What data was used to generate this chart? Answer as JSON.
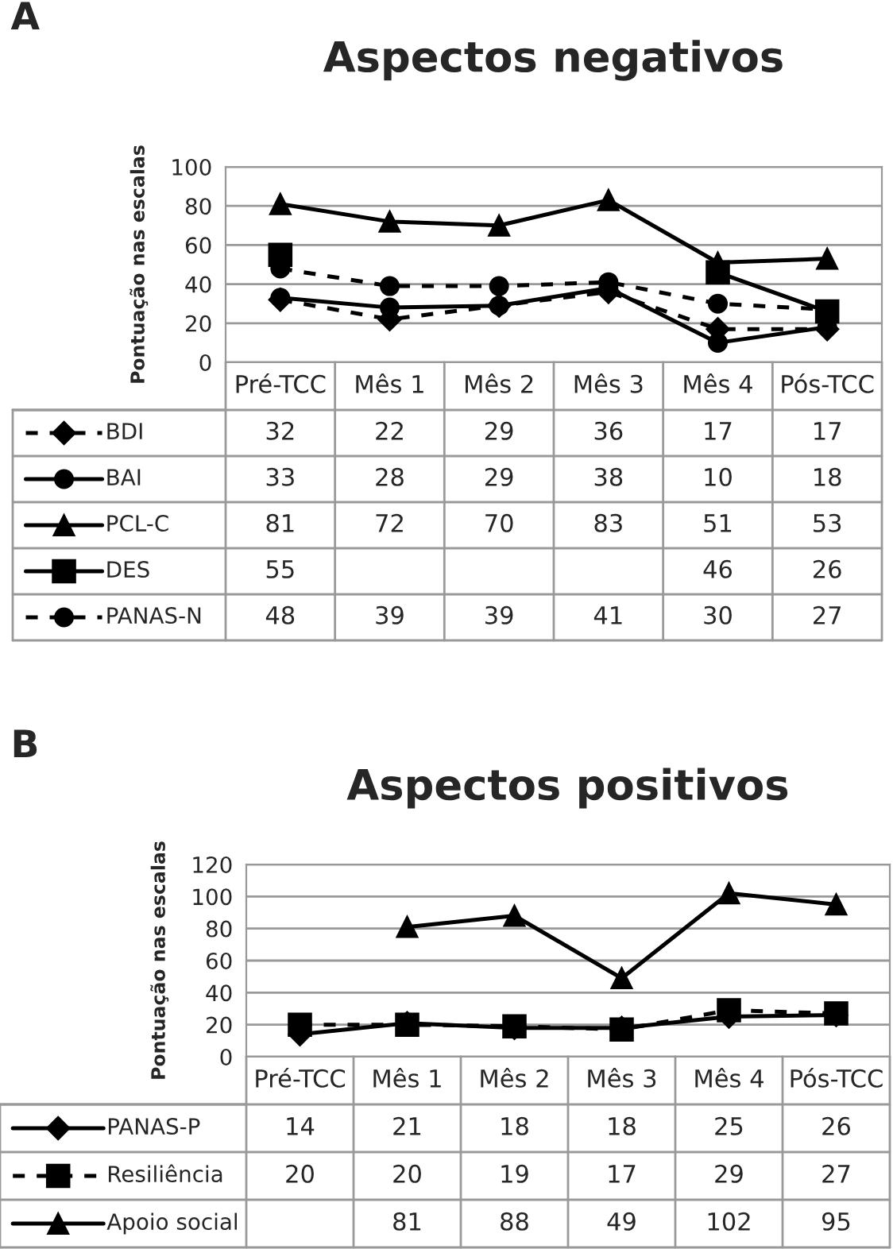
{
  "chart_data": [
    {
      "type": "line",
      "title": "Aspectos negativos",
      "ylabel": "Pontuação nas escalas",
      "annotations": [
        "A"
      ],
      "categories": [
        "Pré-TCC",
        "Mês 1",
        "Mês 2",
        "Mês 3",
        "Mês 4",
        "Pós-TCC"
      ],
      "ylim": [
        0,
        100
      ],
      "yticks": [
        0,
        20,
        40,
        60,
        80,
        100
      ],
      "grid": "y",
      "legend": "bottom",
      "data_labels": true,
      "series": [
        {
          "name": "BDI",
          "color": "#000000",
          "marker": "diamond",
          "line_style": "dashed",
          "values": [
            32,
            22,
            29,
            36,
            17,
            17
          ]
        },
        {
          "name": "BAI",
          "color": "#000000",
          "marker": "circle",
          "line_style": "solid",
          "values": [
            33,
            28,
            29,
            38,
            10,
            18
          ]
        },
        {
          "name": "PCL-C",
          "color": "#000000",
          "marker": "triangle",
          "line_style": "solid",
          "values": [
            81,
            72,
            70,
            83,
            51,
            53
          ]
        },
        {
          "name": "DES",
          "color": "#000000",
          "marker": "square",
          "line_style": "solid",
          "values": [
            55,
            null,
            null,
            null,
            46,
            26
          ]
        },
        {
          "name": "PANAS-N",
          "color": "#000000",
          "marker": "circle",
          "line_style": "dashed",
          "values": [
            48,
            39,
            39,
            41,
            30,
            27
          ]
        }
      ]
    },
    {
      "type": "line",
      "title": "Aspectos positivos",
      "ylabel": "Pontuação nas escalas",
      "annotations": [
        "B"
      ],
      "categories": [
        "Pré-TCC",
        "Mês 1",
        "Mês 2",
        "Mês 3",
        "Mês 4",
        "Pós-TCC"
      ],
      "ylim": [
        0,
        120
      ],
      "yticks": [
        0,
        20,
        40,
        60,
        80,
        100,
        120
      ],
      "grid": "y",
      "legend": "bottom",
      "data_labels": true,
      "series": [
        {
          "name": "PANAS-P",
          "color": "#000000",
          "marker": "diamond",
          "line_style": "solid",
          "values": [
            14,
            21,
            18,
            18,
            25,
            26
          ]
        },
        {
          "name": "Resiliência",
          "color": "#000000",
          "marker": "square",
          "line_style": "dashed",
          "values": [
            20,
            20,
            19,
            17,
            29,
            27
          ]
        },
        {
          "name": "Apoio social",
          "color": "#000000",
          "marker": "triangle",
          "line_style": "solid",
          "values": [
            null,
            81,
            88,
            49,
            102,
            95
          ]
        }
      ]
    }
  ]
}
